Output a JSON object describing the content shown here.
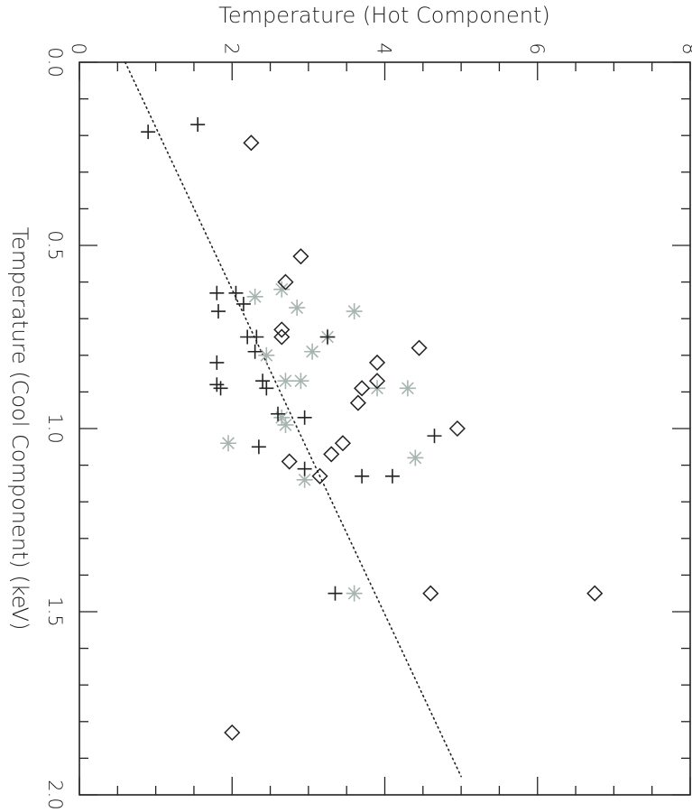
{
  "chart_data": {
    "type": "scatter",
    "orientation": "rotated-90",
    "xlabel": "Temperature (Cool Component) (keV)",
    "ylabel": "Temperature (Hot Component)",
    "xlim": [
      0.0,
      2.0
    ],
    "ylim": [
      0,
      8
    ],
    "x_ticks": [
      "0.0",
      "0.5",
      "1.0",
      "1.5",
      "2.0"
    ],
    "y_ticks": [
      "0",
      "2",
      "4",
      "6",
      "8"
    ],
    "grid": false,
    "series": [
      {
        "marker": "plus",
        "color": "#222222",
        "points": [
          {
            "x": 0.19,
            "y": 0.9
          },
          {
            "x": 0.17,
            "y": 1.55
          },
          {
            "x": 0.63,
            "y": 1.8
          },
          {
            "x": 0.68,
            "y": 1.82
          },
          {
            "x": 0.63,
            "y": 2.05
          },
          {
            "x": 0.66,
            "y": 2.15
          },
          {
            "x": 0.75,
            "y": 2.2
          },
          {
            "x": 0.75,
            "y": 2.32
          },
          {
            "x": 0.79,
            "y": 2.3
          },
          {
            "x": 0.82,
            "y": 1.8
          },
          {
            "x": 0.88,
            "y": 1.8
          },
          {
            "x": 0.89,
            "y": 1.85
          },
          {
            "x": 0.87,
            "y": 2.4
          },
          {
            "x": 0.89,
            "y": 2.45
          },
          {
            "x": 0.96,
            "y": 2.6
          },
          {
            "x": 0.97,
            "y": 2.95
          },
          {
            "x": 1.05,
            "y": 2.35
          },
          {
            "x": 1.11,
            "y": 2.95
          },
          {
            "x": 0.75,
            "y": 3.25
          },
          {
            "x": 1.13,
            "y": 3.7
          },
          {
            "x": 1.13,
            "y": 4.1
          },
          {
            "x": 1.02,
            "y": 4.65
          },
          {
            "x": 1.45,
            "y": 3.35
          }
        ]
      },
      {
        "marker": "diamond",
        "color": "#222222",
        "points": [
          {
            "x": 0.22,
            "y": 2.25
          },
          {
            "x": 0.53,
            "y": 2.9
          },
          {
            "x": 0.6,
            "y": 2.7
          },
          {
            "x": 0.73,
            "y": 2.65
          },
          {
            "x": 0.75,
            "y": 2.65
          },
          {
            "x": 0.78,
            "y": 4.45
          },
          {
            "x": 0.82,
            "y": 3.9
          },
          {
            "x": 0.87,
            "y": 3.9
          },
          {
            "x": 0.89,
            "y": 3.7
          },
          {
            "x": 0.93,
            "y": 3.65
          },
          {
            "x": 1.0,
            "y": 4.95
          },
          {
            "x": 1.04,
            "y": 3.45
          },
          {
            "x": 1.07,
            "y": 3.3
          },
          {
            "x": 1.09,
            "y": 2.75
          },
          {
            "x": 1.13,
            "y": 3.15
          },
          {
            "x": 1.45,
            "y": 4.6
          },
          {
            "x": 1.45,
            "y": 6.75
          },
          {
            "x": 1.83,
            "y": 2.0
          }
        ]
      },
      {
        "marker": "asterisk",
        "color": "#a8b4b0",
        "points": [
          {
            "x": 0.64,
            "y": 2.3
          },
          {
            "x": 0.62,
            "y": 2.65
          },
          {
            "x": 0.67,
            "y": 2.85
          },
          {
            "x": 0.68,
            "y": 3.6
          },
          {
            "x": 0.75,
            "y": 3.25
          },
          {
            "x": 0.79,
            "y": 3.05
          },
          {
            "x": 0.8,
            "y": 2.45
          },
          {
            "x": 0.87,
            "y": 2.7
          },
          {
            "x": 0.87,
            "y": 2.9
          },
          {
            "x": 0.89,
            "y": 3.9
          },
          {
            "x": 0.89,
            "y": 4.3
          },
          {
            "x": 0.97,
            "y": 2.65
          },
          {
            "x": 0.99,
            "y": 2.7
          },
          {
            "x": 1.04,
            "y": 1.95
          },
          {
            "x": 1.08,
            "y": 4.4
          },
          {
            "x": 1.14,
            "y": 2.95
          },
          {
            "x": 1.45,
            "y": 3.6
          }
        ]
      }
    ],
    "reference_line": {
      "style": "dotted",
      "points": [
        {
          "x": 0.0,
          "y": 0.6
        },
        {
          "x": 1.95,
          "y": 5.0
        }
      ]
    }
  }
}
